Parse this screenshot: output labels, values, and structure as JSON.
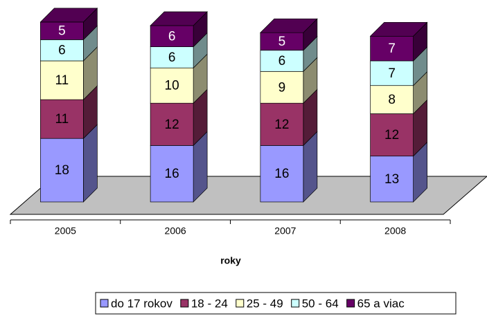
{
  "chart_data": {
    "type": "bar3d_stacked",
    "x_label": "roky",
    "categories": [
      "2005",
      "2006",
      "2007",
      "2008"
    ],
    "series": [
      {
        "name": "do 17 rokov",
        "color": "#9999ff",
        "values": [
          18,
          16,
          16,
          13
        ]
      },
      {
        "name": "18 - 24",
        "color": "#993366",
        "values": [
          11,
          12,
          12,
          12
        ]
      },
      {
        "name": "25 - 49",
        "color": "#ffffcc",
        "values": [
          11,
          10,
          9,
          8
        ]
      },
      {
        "name": "50 - 64",
        "color": "#ccffff",
        "values": [
          6,
          6,
          6,
          7
        ]
      },
      {
        "name": "65 a viac",
        "color": "#660066",
        "values": [
          5,
          6,
          5,
          7
        ]
      }
    ],
    "legend": "bottom"
  }
}
